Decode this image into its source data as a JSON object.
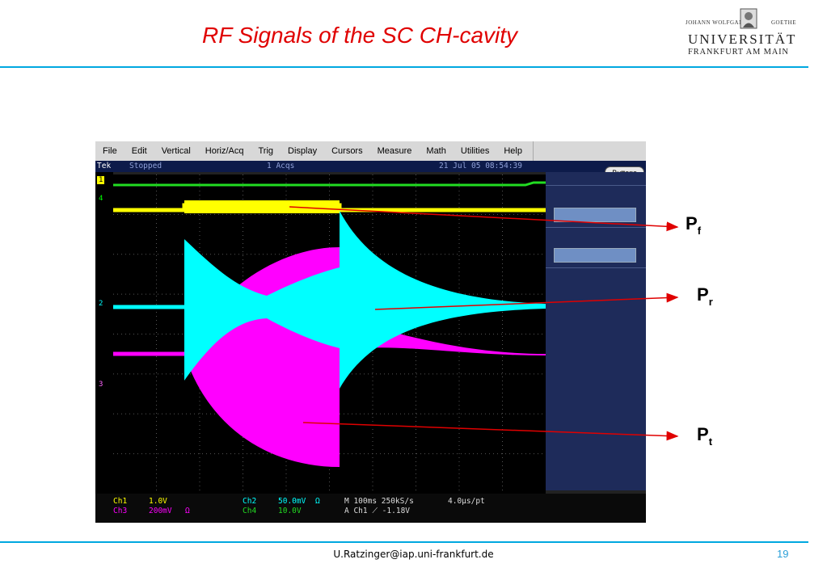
{
  "slide": {
    "title": "RF Signals of the SC CH-cavity",
    "footer_email": "U.Ratzinger@iap.uni-frankfurt.de",
    "page_number": "19",
    "accent_color": "#00a8e0",
    "title_color": "#e00000"
  },
  "logo": {
    "line1": "JOHANN WOLFGANG",
    "line1b": "GOETHE",
    "line2": "UNIVERSITÄT",
    "line3": "FRANKFURT AM MAIN"
  },
  "scope": {
    "menu": [
      "File",
      "Edit",
      "Vertical",
      "Horiz/Acq",
      "Trig",
      "Display",
      "Cursors",
      "Measure",
      "Math",
      "Utilities",
      "Help"
    ],
    "status": {
      "brand": "Tek",
      "state": "Stopped",
      "acqs": "1 Acqs",
      "datetime": "21 Jul 05 08:54:39"
    },
    "buttons_label": "Buttons",
    "channel_markers": {
      "m1": "1",
      "m4": "4",
      "m2": "2",
      "m3": "3"
    },
    "readout": {
      "ch1": "Ch1",
      "ch1_val": "1.0V",
      "ch3": "Ch3",
      "ch3_val": "200mV",
      "ch2": "Ch2",
      "ch2_val": "50.0mV",
      "ch4": "Ch4",
      "ch4_val": "10.0V",
      "timebase": "M 100ms 250kS/s",
      "sample": "4.0µs/pt",
      "trigger": "A  Ch1  ⟋  -1.18V"
    },
    "colors": {
      "ch1": "#ffff00",
      "ch2": "#00ffff",
      "ch3": "#ff00ff",
      "ch4": "#00ff00"
    }
  },
  "labels": {
    "pf": "P",
    "pf_sub": "f",
    "pr": "P",
    "pr_sub": "r",
    "pt": "P",
    "pt_sub": "t"
  }
}
